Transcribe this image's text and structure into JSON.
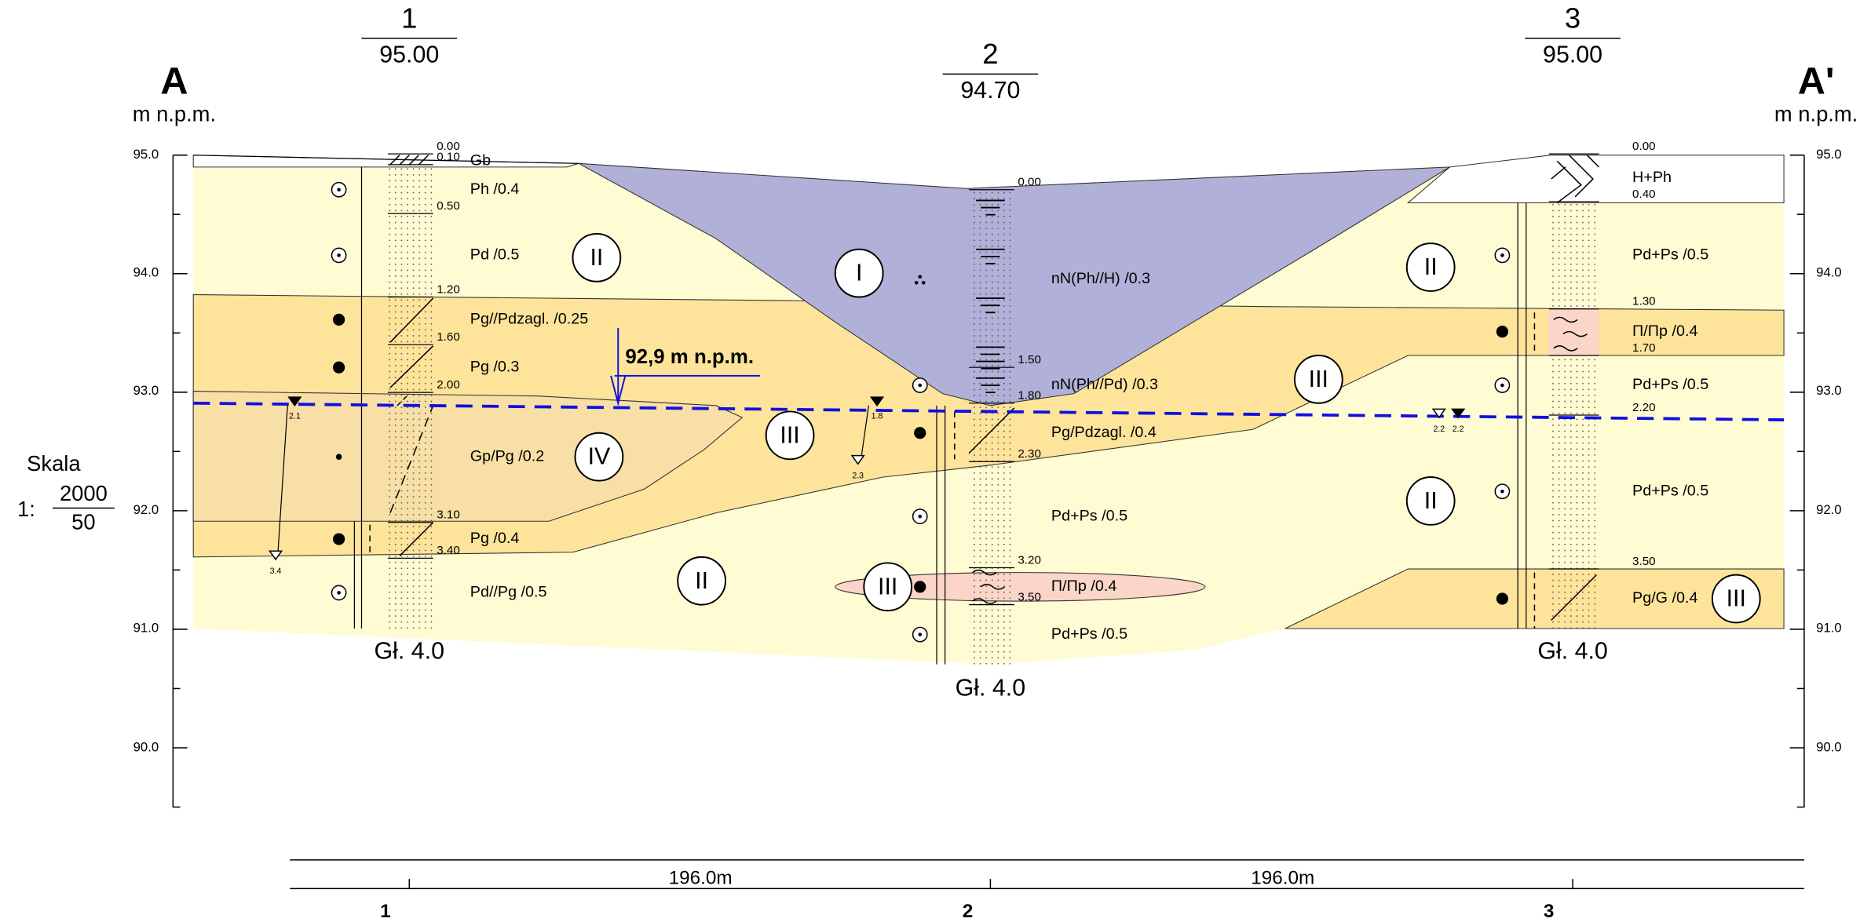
{
  "section": {
    "start": "A",
    "end": "A'",
    "elevation_unit": "m n.p.m."
  },
  "axis_ticks": [
    "95.0",
    "94.0",
    "93.0",
    "92.0",
    "91.0",
    "90.0"
  ],
  "scale": {
    "title": "Skala",
    "prefix": "1:",
    "horizontal": "2000",
    "vertical": "50"
  },
  "boreholes": [
    {
      "number": "1",
      "elevation": "95.00",
      "total_depth": "Gł. 4.0",
      "depths": [
        "0.00",
        "0.10",
        "0.50",
        "1.20",
        "1.60",
        "2.00",
        "3.10",
        "3.40"
      ],
      "layers": [
        "Gb",
        "Ph /0.4",
        "Pd /0.5",
        "Pg//Pdzagl. /0.25",
        "Pg /0.3",
        "Gp/Pg /0.2",
        "Pg /0.4",
        "Pd//Pg /0.5"
      ]
    },
    {
      "number": "2",
      "elevation": "94.70",
      "total_depth": "Gł. 4.0",
      "depths": [
        "0.00",
        "1.50",
        "1.80",
        "2.30",
        "3.20",
        "3.50"
      ],
      "layers": [
        "nN(Ph//H) /0.3",
        "nN(Ph//Pd) /0.3",
        "Pg/Pdzagl. /0.4",
        "Pd+Ps /0.5",
        "Π/Πp /0.4",
        "Pd+Ps /0.5"
      ]
    },
    {
      "number": "3",
      "elevation": "95.00",
      "total_depth": "Gł. 4.0",
      "depths": [
        "0.00",
        "0.40",
        "1.30",
        "1.70",
        "2.20",
        "3.50"
      ],
      "layers": [
        "H+Ph",
        "Pd+Ps /0.5",
        "Π/Πp /0.4",
        "Pd+Ps /0.5",
        "Pd+Ps /0.5",
        "Pg/G /0.4"
      ]
    }
  ],
  "soil_groups": [
    "II",
    "I",
    "III",
    "IV",
    "II",
    "III",
    "III",
    "II",
    "II",
    "III"
  ],
  "water": {
    "label": "92,9 m n.p.m.",
    "levels": [
      "2.1",
      "3.4",
      "1.8",
      "2.3",
      "2.2",
      "2.2"
    ]
  },
  "distances": [
    "196.0m",
    "196.0m"
  ]
}
